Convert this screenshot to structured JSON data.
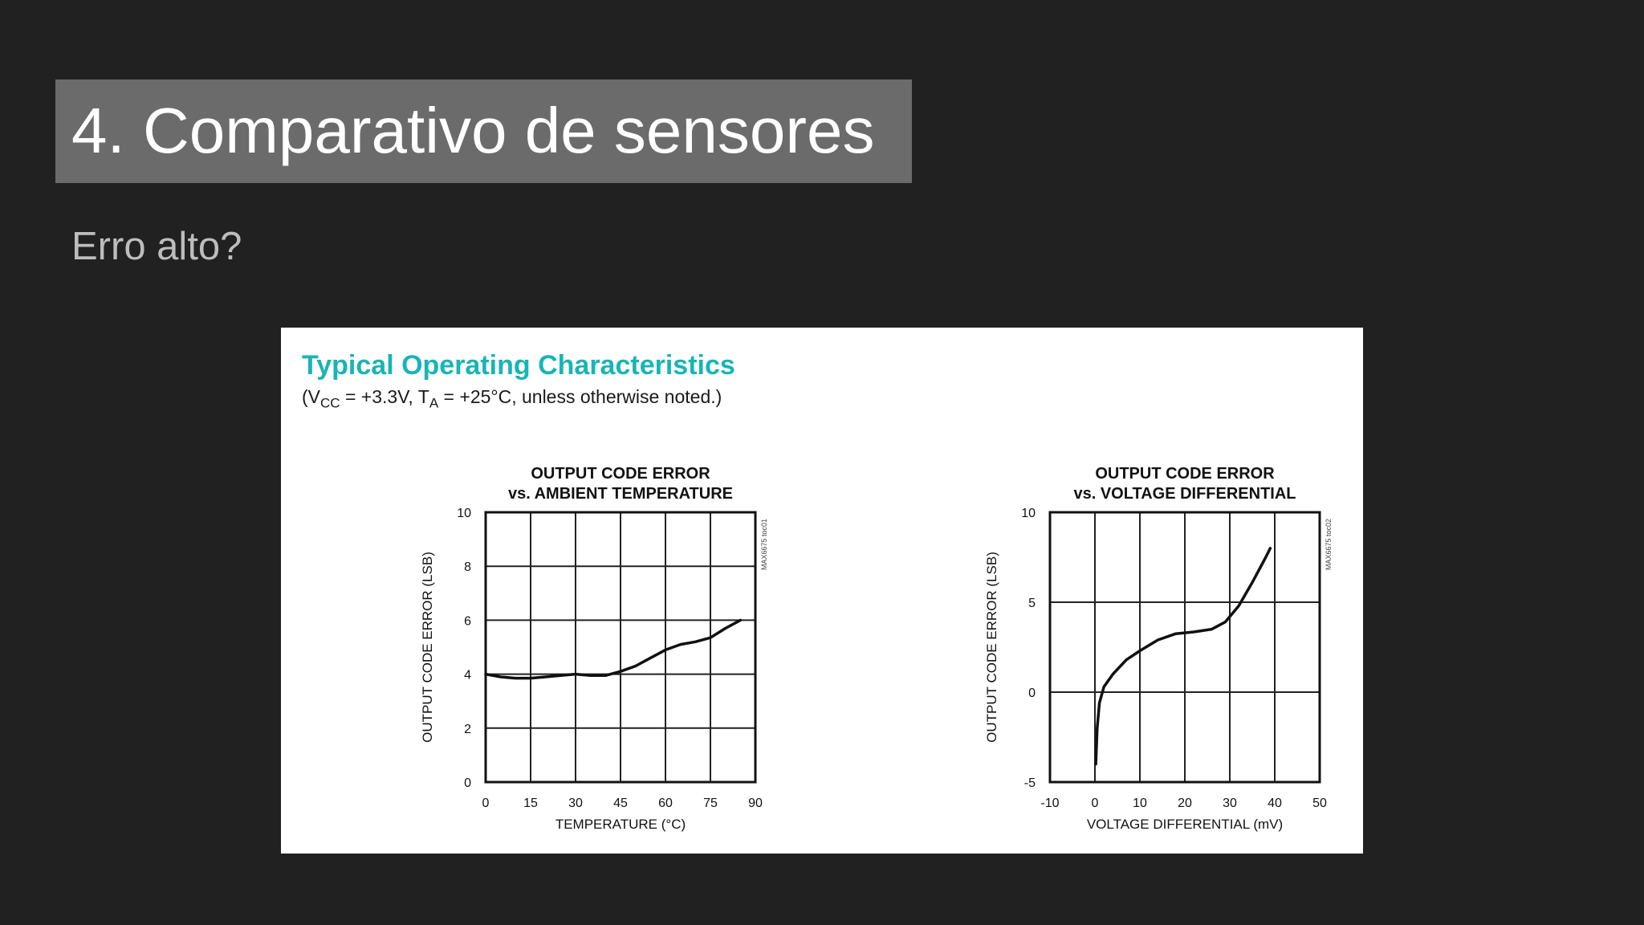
{
  "slide": {
    "title": "4. Comparativo de sensores",
    "subtitle": "Erro alto?"
  },
  "figure": {
    "heading": "Typical Operating Characteristics",
    "cond_open": "(V",
    "cond_vsub": "CC",
    "cond_mid": " = +3.3V, T",
    "cond_tsub": "A",
    "cond_close": " = +25°C, unless otherwise noted.)"
  },
  "chart_data": [
    {
      "type": "line",
      "title": "OUTPUT CODE ERROR",
      "subtitle": "vs. AMBIENT TEMPERATURE",
      "xlabel": "TEMPERATURE (°C)",
      "ylabel": "OUTPUT CODE ERROR (LSB)",
      "xlim": [
        0,
        90
      ],
      "ylim": [
        0,
        10
      ],
      "xticks": [
        0,
        15,
        30,
        45,
        60,
        75,
        90
      ],
      "yticks": [
        0,
        2,
        4,
        6,
        8,
        10
      ],
      "grid": true,
      "series": [
        {
          "x": [
            0,
            5,
            10,
            15,
            20,
            25,
            30,
            35,
            40,
            45,
            50,
            55,
            60,
            65,
            70,
            75,
            80,
            85
          ],
          "y": [
            4.0,
            3.9,
            3.85,
            3.85,
            3.9,
            3.95,
            4.0,
            3.95,
            3.95,
            4.1,
            4.3,
            4.6,
            4.9,
            5.1,
            5.2,
            5.35,
            5.7,
            6.0
          ]
        }
      ],
      "watermark": "MAX6675 toc01"
    },
    {
      "type": "line",
      "title": "OUTPUT CODE ERROR",
      "subtitle": "vs. VOLTAGE DIFFERENTIAL",
      "xlabel": "VOLTAGE DIFFERENTIAL (mV)",
      "ylabel": "OUTPUT CODE ERROR (LSB)",
      "xlim": [
        -10,
        50
      ],
      "ylim": [
        -5,
        10
      ],
      "xticks": [
        -10,
        0,
        10,
        20,
        30,
        40,
        50
      ],
      "yticks": [
        -5,
        0,
        5,
        10
      ],
      "grid": true,
      "series": [
        {
          "x": [
            0.2,
            0.5,
            1,
            2,
            4,
            7,
            10,
            14,
            18,
            22,
            26,
            29,
            32,
            35,
            38,
            39
          ],
          "y": [
            -4.0,
            -2.0,
            -0.6,
            0.3,
            1.0,
            1.8,
            2.3,
            2.9,
            3.25,
            3.35,
            3.5,
            3.9,
            4.8,
            6.1,
            7.5,
            8.0
          ]
        }
      ],
      "watermark": "MAX6675 toc02"
    }
  ]
}
